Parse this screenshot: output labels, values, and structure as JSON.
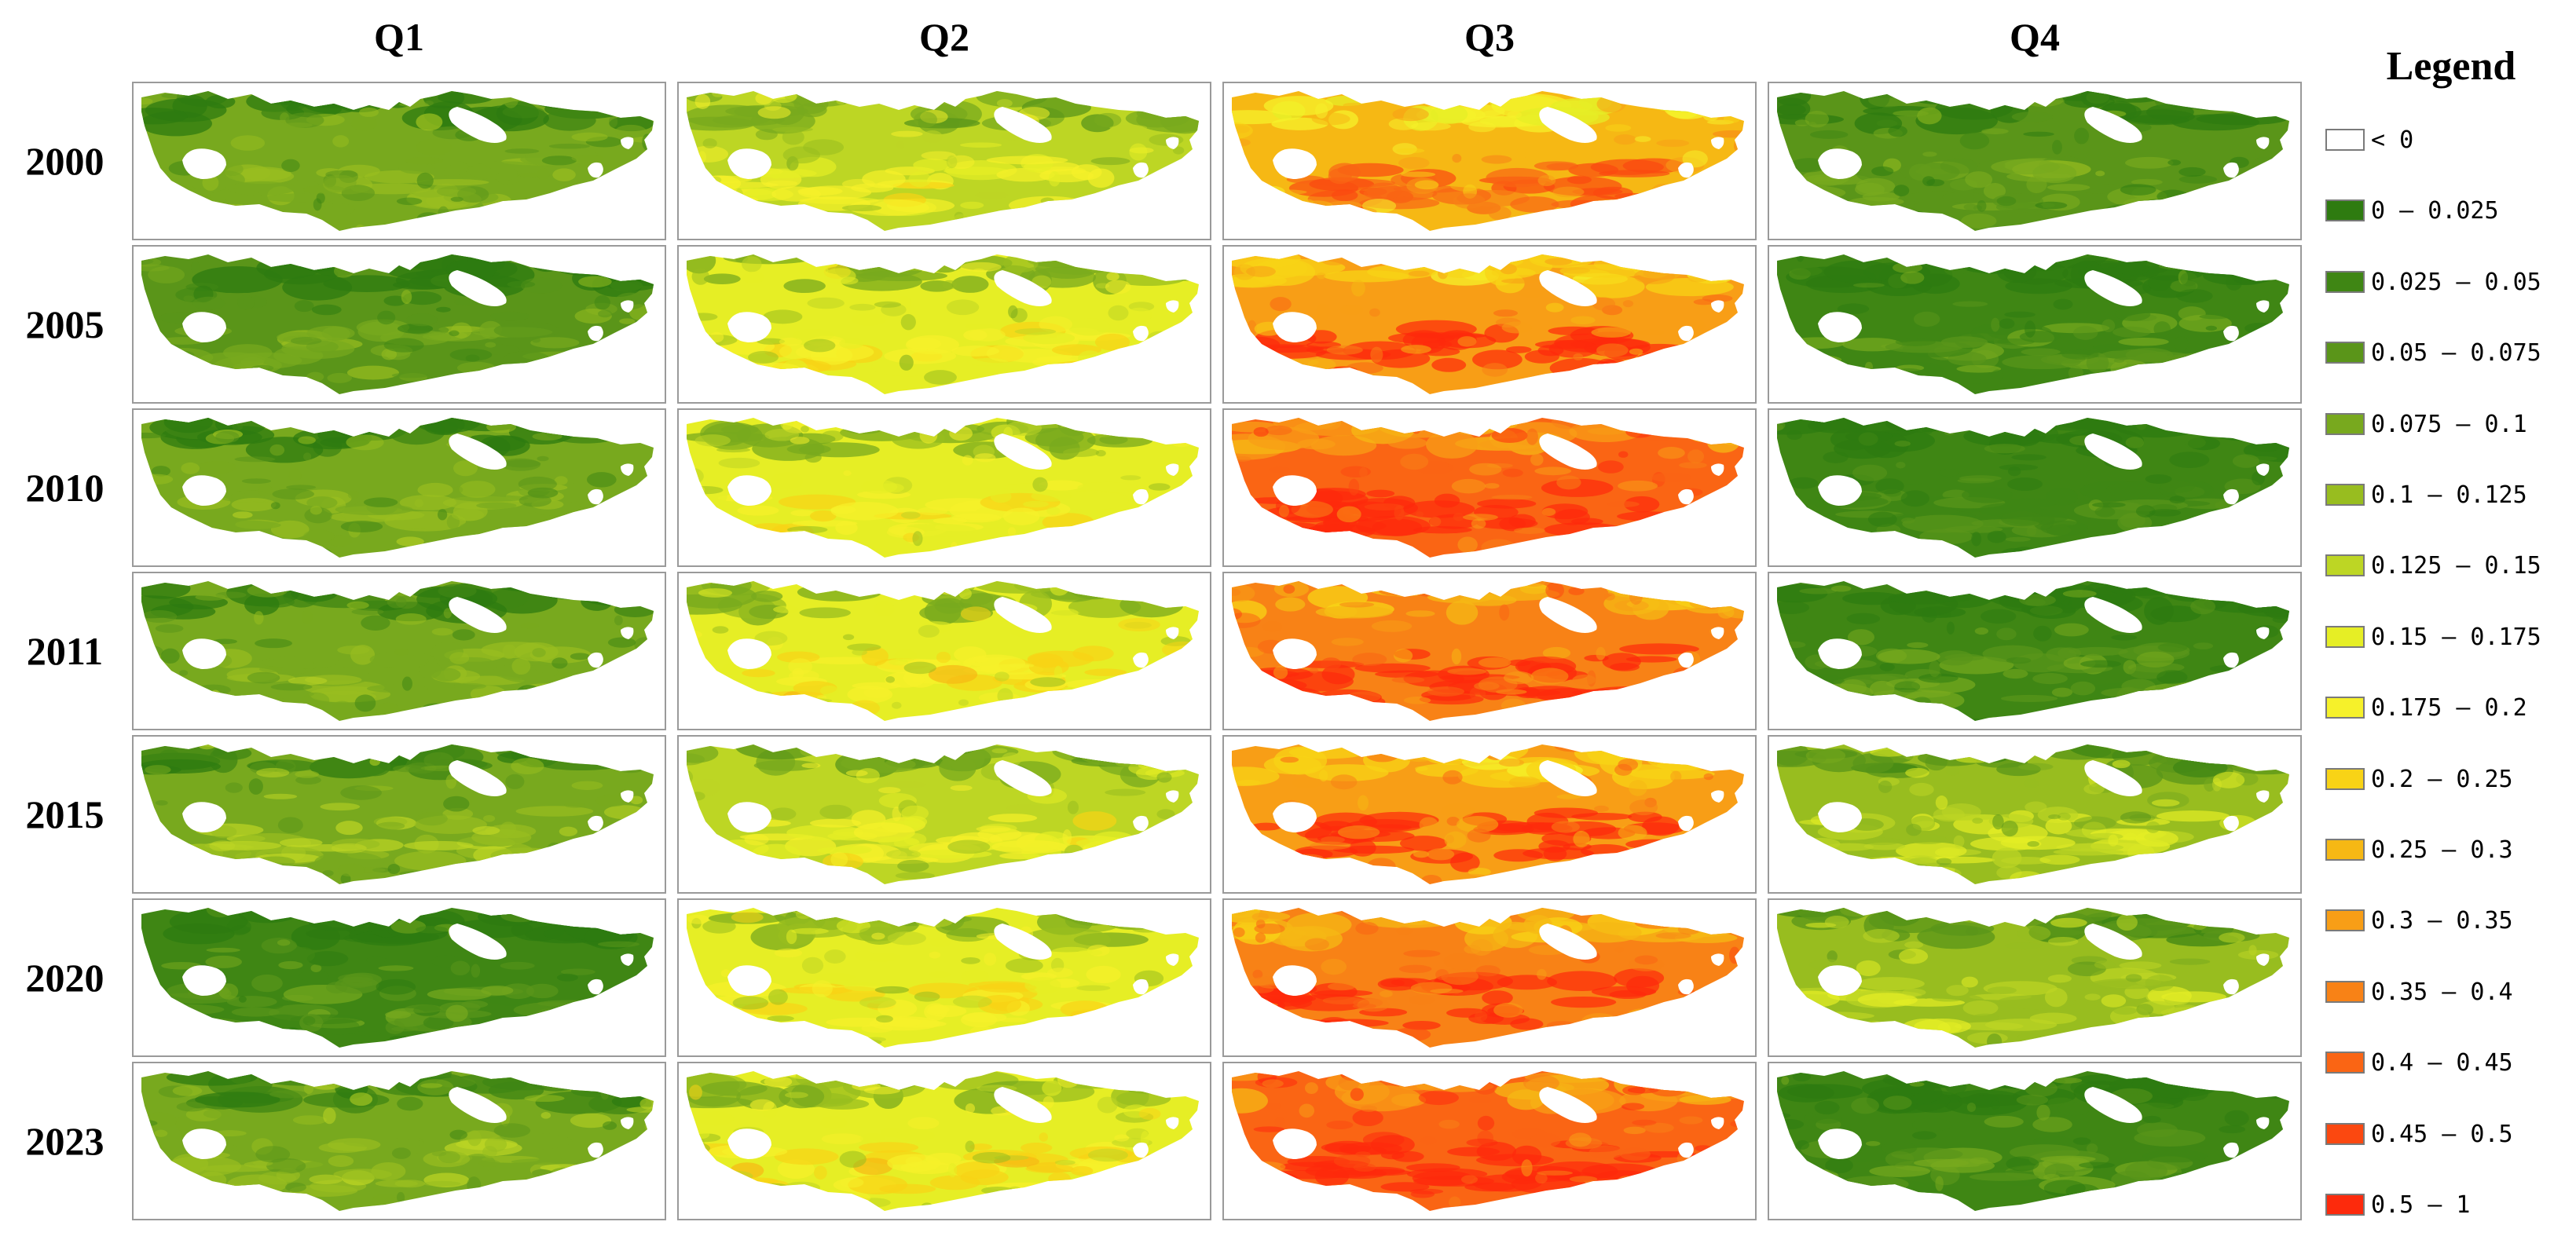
{
  "columns": [
    {
      "label": "Q1",
      "tone": 0.2
    },
    {
      "label": "Q2",
      "tone": 0.4
    },
    {
      "label": "Q3",
      "tone": 0.72
    },
    {
      "label": "Q4",
      "tone": 0.18
    }
  ],
  "rows": [
    {
      "label": "2000",
      "tone": [
        0.2,
        0.38,
        0.62,
        0.15
      ]
    },
    {
      "label": "2005",
      "tone": [
        0.18,
        0.4,
        0.72,
        0.1
      ]
    },
    {
      "label": "2010",
      "tone": [
        0.21,
        0.4,
        0.82,
        0.08
      ]
    },
    {
      "label": "2011",
      "tone": [
        0.2,
        0.42,
        0.78,
        0.12
      ]
    },
    {
      "label": "2015",
      "tone": [
        0.25,
        0.38,
        0.72,
        0.32
      ]
    },
    {
      "label": "2020",
      "tone": [
        0.12,
        0.4,
        0.78,
        0.3
      ]
    },
    {
      "label": "2023",
      "tone": [
        0.24,
        0.42,
        0.84,
        0.1
      ]
    }
  ],
  "legend": {
    "title": "Legend",
    "items": [
      {
        "label": "< 0",
        "color": "#ffffff"
      },
      {
        "label": "0 — 0.025",
        "color": "#2e7b10"
      },
      {
        "label": "0.025 — 0.05",
        "color": "#3f8614"
      },
      {
        "label": "0.05 — 0.075",
        "color": "#5a9519"
      },
      {
        "label": "0.075 — 0.1",
        "color": "#78a91e"
      },
      {
        "label": "0.1 — 0.125",
        "color": "#98bd1f"
      },
      {
        "label": "0.125 — 0.15",
        "color": "#bdd624"
      },
      {
        "label": "0.15 — 0.175",
        "color": "#e6ee25"
      },
      {
        "label": "0.175 — 0.2",
        "color": "#f6f12a"
      },
      {
        "label": "0.2 — 0.25",
        "color": "#f8d316"
      },
      {
        "label": "0.25 — 0.3",
        "color": "#f6b814"
      },
      {
        "label": "0.3 — 0.35",
        "color": "#f89e16"
      },
      {
        "label": "0.35 — 0.4",
        "color": "#f88216"
      },
      {
        "label": "0.4 — 0.45",
        "color": "#fa6514"
      },
      {
        "label": "0.45 — 0.5",
        "color": "#fb4810"
      },
      {
        "label": "0.5 — 1",
        "color": "#fd2a0c"
      }
    ]
  }
}
